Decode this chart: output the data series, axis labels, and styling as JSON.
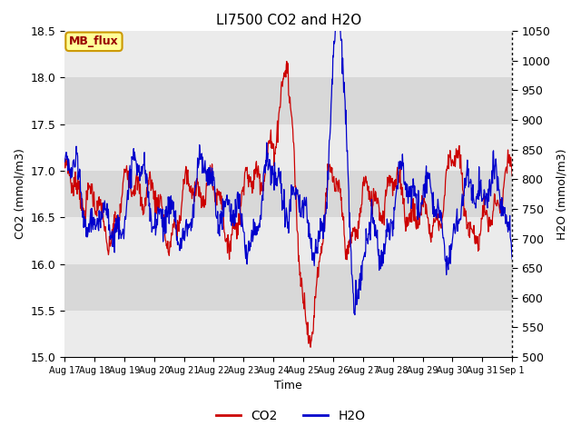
{
  "title": "LI7500 CO2 and H2O",
  "xlabel": "Time",
  "ylabel_left": "CO2 (mmol/m3)",
  "ylabel_right": "H2O (mmol/m3)",
  "ylim_left": [
    15.0,
    18.5
  ],
  "ylim_right": [
    500,
    1050
  ],
  "x_tick_labels": [
    "Aug 17",
    "Aug 18",
    "Aug 19",
    "Aug 20",
    "Aug 21",
    "Aug 22",
    "Aug 23",
    "Aug 24",
    "Aug 25",
    "Aug 26",
    "Aug 27",
    "Aug 28",
    "Aug 29",
    "Aug 30",
    "Aug 31",
    "Sep 1"
  ],
  "co2_color": "#CC0000",
  "h2o_color": "#0000CC",
  "background_color": "#ffffff",
  "plot_bg_color": "#e8e8e8",
  "band_light": "#ebebeb",
  "band_dark": "#d8d8d8",
  "legend_label_co2": "CO2",
  "legend_label_h2o": "H2O",
  "annotation_text": "MB_flux",
  "annotation_bg": "#ffff99",
  "annotation_border": "#cc9900",
  "annotation_text_color": "#990000",
  "yticks_left": [
    15.0,
    15.5,
    16.0,
    16.5,
    17.0,
    17.5,
    18.0,
    18.5
  ],
  "yticks_right": [
    500,
    550,
    600,
    650,
    700,
    750,
    800,
    850,
    900,
    950,
    1000,
    1050
  ]
}
